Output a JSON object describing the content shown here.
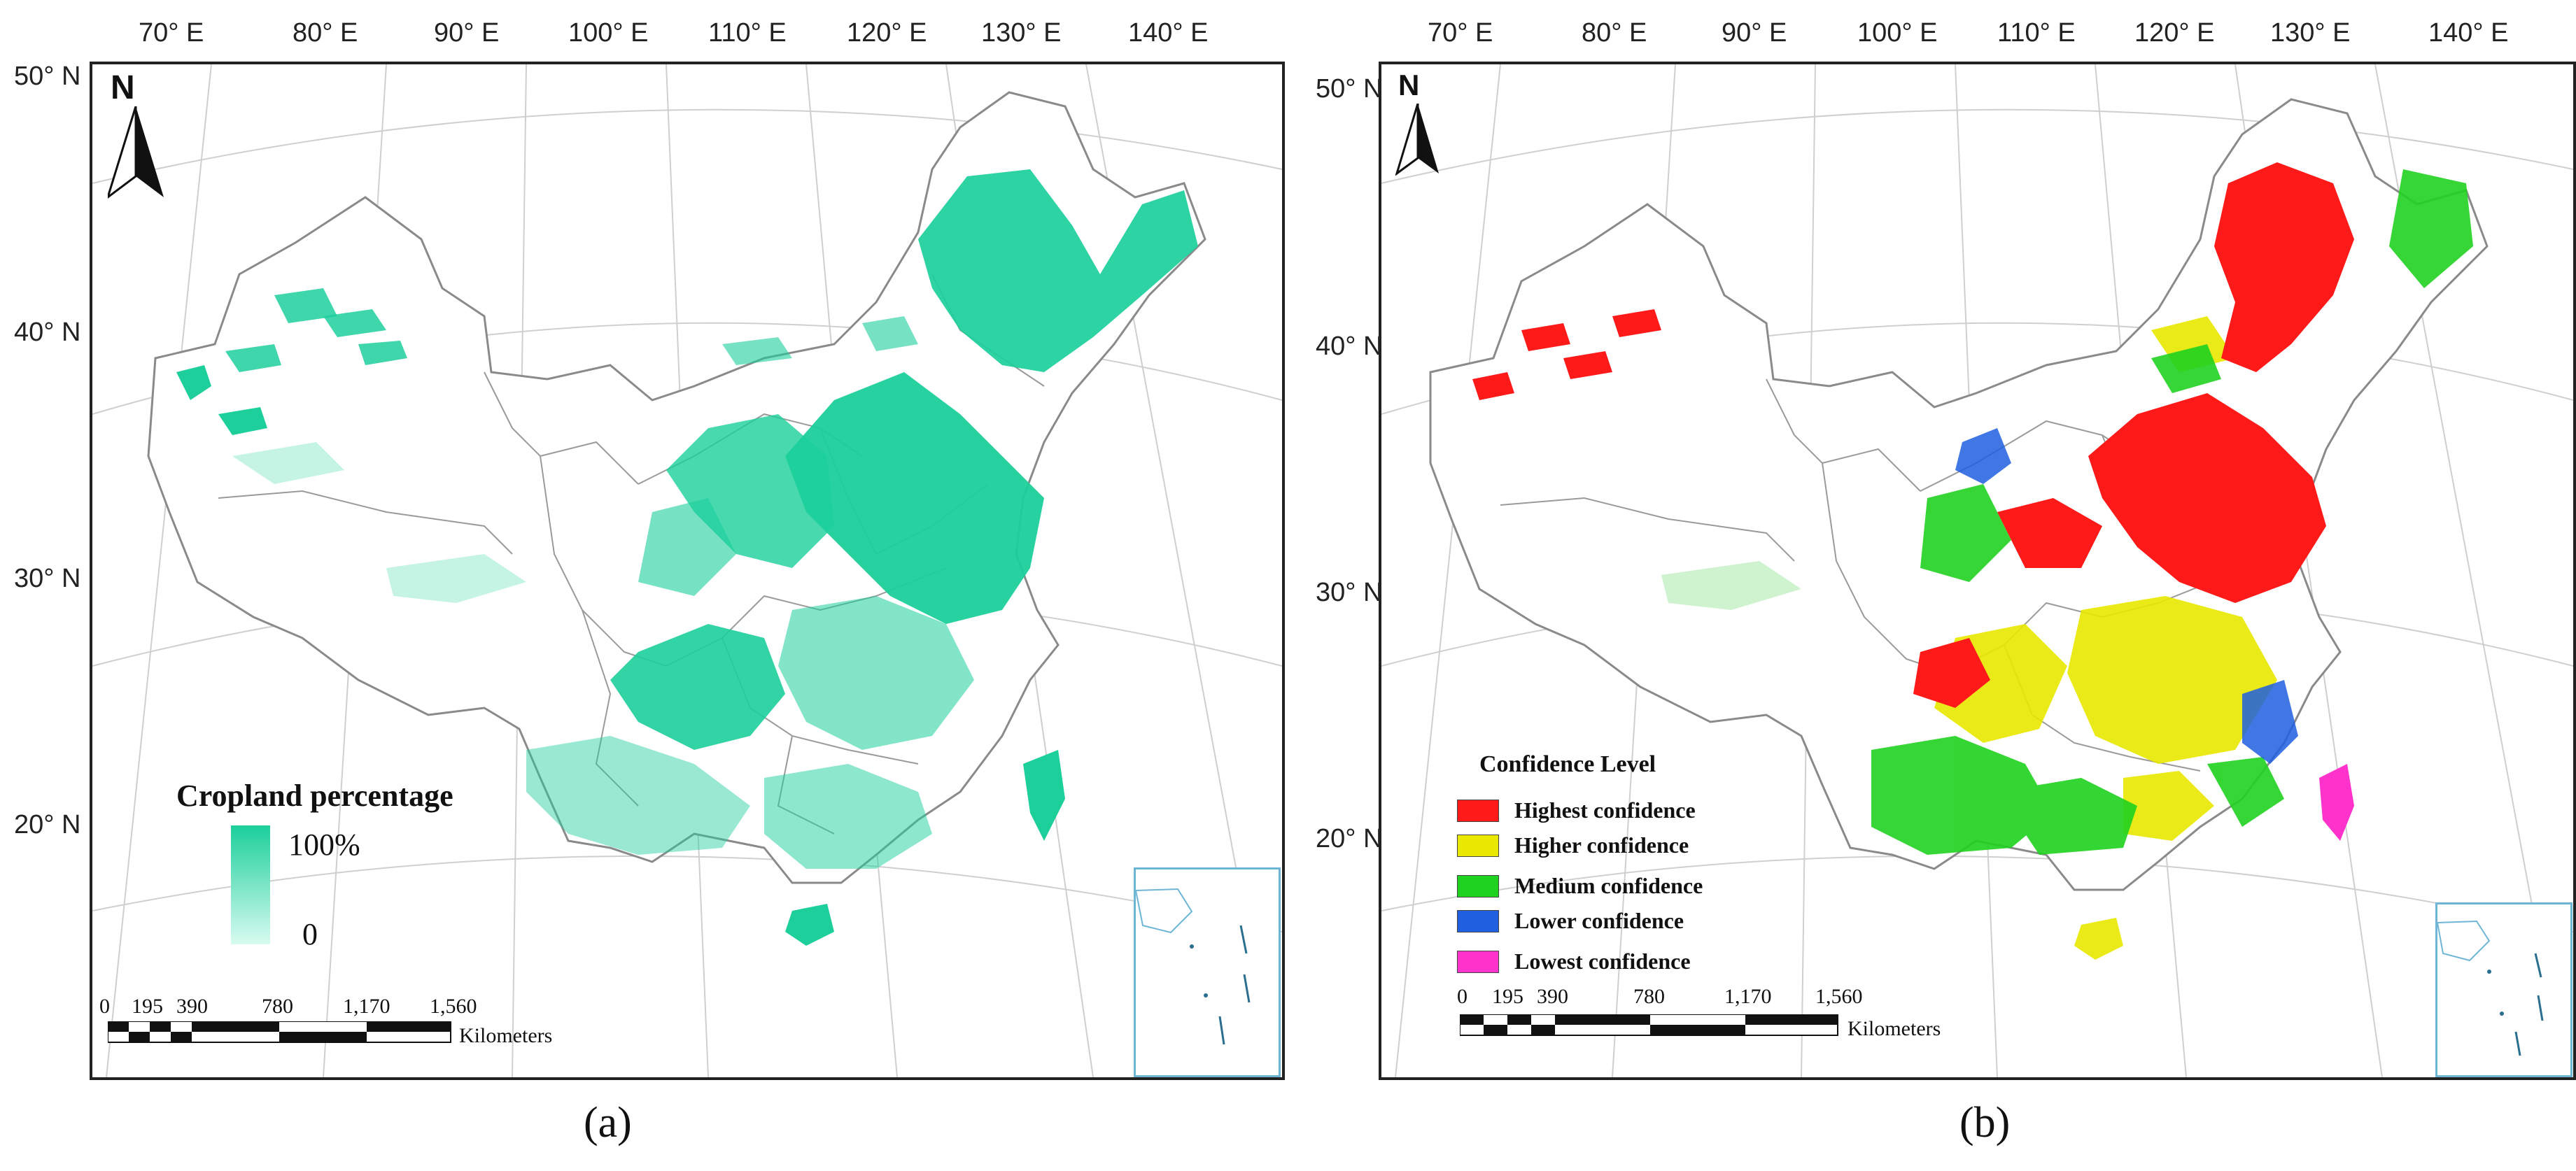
{
  "panel_a": {
    "caption": "(a)",
    "north_label": "N",
    "top_labels": [
      "70° E",
      "80° E",
      "90° E",
      "100° E",
      "110° E",
      "120° E",
      "130° E",
      "140° E"
    ],
    "left_labels": [
      "50° N",
      "40° N",
      "30° N",
      "20° N"
    ],
    "legend": {
      "title": "Cropland percentage",
      "max_label": "100%",
      "min_label": "0",
      "colors": [
        "#1ccf9b",
        "#d8fbf0"
      ]
    },
    "scale": {
      "ticks": [
        "0",
        "195",
        "390",
        "780",
        "1,170",
        "1,560"
      ],
      "unit": "Kilometers"
    }
  },
  "panel_b": {
    "caption": "(b)",
    "north_label": "N",
    "top_labels": [
      "70° E",
      "80° E",
      "90° E",
      "100° E",
      "110° E",
      "120° E",
      "130° E",
      "140° E"
    ],
    "left_labels": [
      "50° N",
      "40° N",
      "30° N",
      "20° N"
    ],
    "legend": {
      "title": "Confidence Level",
      "items": [
        {
          "label": "Highest confidence",
          "color": "#ff1a1a"
        },
        {
          "label": "Higher confidence",
          "color": "#e8e800"
        },
        {
          "label": "Medium confidence",
          "color": "#1fd21f"
        },
        {
          "label": "Lower confidence",
          "color": "#1f5fe0"
        },
        {
          "label": "Lowest confidence",
          "color": "#ff33cc"
        }
      ]
    },
    "scale": {
      "ticks": [
        "0",
        "195",
        "390",
        "780",
        "1,170",
        "1,560"
      ],
      "unit": "Kilometers"
    }
  },
  "colors": {
    "border": "#8a8a8a",
    "graticule": "#cfcfcf",
    "cropland": "#1ccf9b",
    "inset_border": "#6fb6d6"
  }
}
